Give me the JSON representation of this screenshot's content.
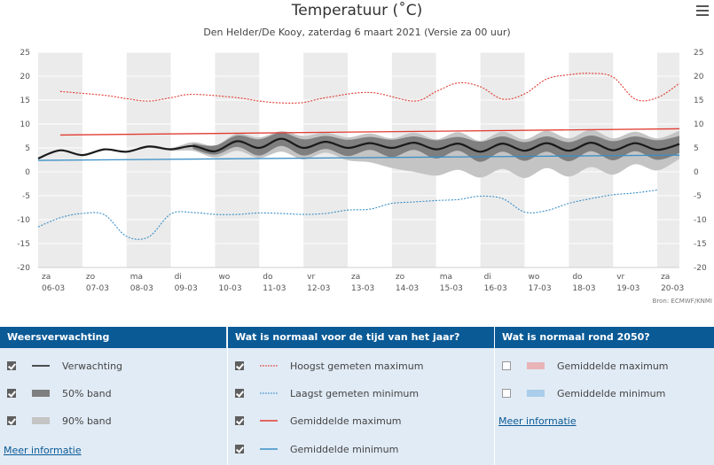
{
  "header": {
    "title": "Temperatuur (˚C)",
    "subtitle": "Den Helder/De Kooy, zaterdag 6 maart 2021 (Versie za 00 uur)",
    "source": "Bron: ECMWF/KNMI"
  },
  "chart_data": {
    "type": "line",
    "ylim": [
      -20,
      25
    ],
    "yticks": [
      25,
      20,
      15,
      10,
      5,
      0,
      -5,
      -10,
      -15,
      -20
    ],
    "xlim": [
      0,
      14.5
    ],
    "categories": [
      {
        "day": "za",
        "date": "06-03"
      },
      {
        "day": "zo",
        "date": "07-03"
      },
      {
        "day": "ma",
        "date": "08-03"
      },
      {
        "day": "di",
        "date": "09-03"
      },
      {
        "day": "wo",
        "date": "10-03"
      },
      {
        "day": "do",
        "date": "11-03"
      },
      {
        "day": "vr",
        "date": "12-03"
      },
      {
        "day": "za",
        "date": "13-03"
      },
      {
        "day": "zo",
        "date": "14-03"
      },
      {
        "day": "ma",
        "date": "15-03"
      },
      {
        "day": "di",
        "date": "16-03"
      },
      {
        "day": "wo",
        "date": "17-03"
      },
      {
        "day": "do",
        "date": "18-03"
      },
      {
        "day": "vr",
        "date": "19-03"
      },
      {
        "day": "za",
        "date": "20-03"
      }
    ],
    "colors": {
      "forecast": "#1a1a1a",
      "band50": "#7f7f7f",
      "band90": "#c4c4c4",
      "highest_max": "#e03c31",
      "lowest_min": "#3a8fc7",
      "avg_max": "#e03c31",
      "avg_min": "#3a8fc7",
      "stripe": "#ebebeb"
    },
    "series": [
      {
        "key": "highest_max",
        "x": [
          0.5,
          1.5,
          2.0,
          2.5,
          3.0,
          3.5,
          4.5,
          5.0,
          5.5,
          6.0,
          6.5,
          7.5,
          8.5,
          9.0,
          9.5,
          10.0,
          10.5,
          11.0,
          11.5,
          12.0,
          12.5,
          13.0,
          13.5,
          14.0,
          14.5
        ],
        "y": [
          16.8,
          16.0,
          15.3,
          14.8,
          15.5,
          16.2,
          15.5,
          14.8,
          14.4,
          14.5,
          15.5,
          16.6,
          14.8,
          16.8,
          18.6,
          17.8,
          15.2,
          16.3,
          19.4,
          20.3,
          20.6,
          19.8,
          15.2,
          15.5,
          18.5
        ]
      },
      {
        "key": "lowest_min",
        "x": [
          0.0,
          0.5,
          1.0,
          1.5,
          2.0,
          2.5,
          3.0,
          3.5,
          4.0,
          4.5,
          5.0,
          5.5,
          6.0,
          6.5,
          7.0,
          7.5,
          8.0,
          8.5,
          9.0,
          9.5,
          10.0,
          10.5,
          11.0,
          11.5,
          12.0,
          12.5,
          13.0,
          13.5,
          14.0
        ],
        "y": [
          -11.5,
          -9.6,
          -8.7,
          -9.0,
          -13.5,
          -13.6,
          -8.8,
          -8.5,
          -8.9,
          -8.9,
          -8.6,
          -8.7,
          -8.9,
          -8.7,
          -8.0,
          -7.8,
          -6.6,
          -6.3,
          -6.0,
          -5.8,
          -5.1,
          -5.6,
          -8.4,
          -8.1,
          -6.6,
          -5.6,
          -4.8,
          -4.4,
          -3.8
        ]
      },
      {
        "key": "avg_max",
        "x": [
          0.5,
          14.5
        ],
        "y": [
          7.7,
          9.0
        ]
      },
      {
        "key": "avg_min",
        "x": [
          0.0,
          14.5
        ],
        "y": [
          2.4,
          3.5
        ]
      },
      {
        "key": "forecast",
        "x": [
          0.0,
          0.5,
          1.0,
          1.5,
          2.0,
          2.5,
          3.0,
          3.5,
          4.0,
          4.5,
          5.0,
          5.5,
          6.0,
          6.5,
          7.0,
          7.5,
          8.0,
          8.5,
          9.0,
          9.5,
          10.0,
          10.5,
          11.0,
          11.5,
          12.0,
          12.5,
          13.0,
          13.5,
          14.0,
          14.5
        ],
        "y": [
          2.8,
          4.5,
          3.5,
          4.7,
          4.2,
          5.3,
          4.7,
          5.4,
          4.3,
          6.4,
          5.0,
          6.9,
          5.0,
          6.3,
          5.0,
          6.0,
          5.0,
          6.1,
          4.7,
          5.9,
          4.2,
          5.9,
          4.4,
          6.0,
          4.4,
          6.1,
          4.5,
          6.0,
          4.6,
          5.8
        ]
      },
      {
        "key": "band50",
        "x": [
          3.5,
          4.0,
          4.5,
          5.0,
          5.5,
          6.0,
          6.5,
          7.0,
          7.5,
          8.0,
          8.5,
          9.0,
          9.5,
          10.0,
          10.5,
          11.0,
          11.5,
          12.0,
          12.5,
          13.0,
          13.5,
          14.0,
          14.5
        ],
        "upper": [
          5.9,
          5.5,
          7.6,
          6.8,
          8.2,
          6.8,
          7.5,
          6.7,
          7.3,
          6.7,
          7.4,
          6.6,
          7.3,
          6.3,
          7.4,
          6.2,
          7.4,
          6.2,
          7.6,
          6.4,
          7.4,
          6.6,
          7.5
        ],
        "lower": [
          4.8,
          3.6,
          5.2,
          3.4,
          5.4,
          3.4,
          4.8,
          3.3,
          4.6,
          3.1,
          4.6,
          2.8,
          4.4,
          2.1,
          4.2,
          2.3,
          4.2,
          2.2,
          4.3,
          2.4,
          4.3,
          2.5,
          3.9
        ]
      },
      {
        "key": "band90",
        "x": [
          0.0,
          0.5,
          1.0,
          1.5,
          2.0,
          2.5,
          3.0,
          3.5,
          4.0,
          4.5,
          5.0,
          5.5,
          6.0,
          6.5,
          7.0,
          7.5,
          8.0,
          8.5,
          9.0,
          9.5,
          10.0,
          10.5,
          11.0,
          11.5,
          12.0,
          12.5,
          13.0,
          13.5,
          14.0,
          14.5
        ],
        "upper": [
          2.8,
          4.5,
          3.5,
          4.7,
          4.2,
          5.5,
          5.0,
          6.2,
          5.5,
          8.0,
          7.2,
          8.5,
          7.5,
          8.2,
          7.2,
          8.0,
          7.0,
          8.2,
          6.8,
          8.3,
          6.5,
          8.4,
          6.8,
          8.6,
          7.0,
          8.8,
          7.0,
          8.4,
          7.0,
          8.6
        ],
        "lower": [
          2.8,
          4.5,
          3.5,
          4.7,
          4.2,
          5.0,
          4.4,
          4.4,
          3.0,
          4.4,
          2.9,
          4.2,
          2.6,
          4.0,
          2.4,
          2.0,
          0.8,
          0.0,
          -0.8,
          0.4,
          -1.2,
          0.6,
          -1.3,
          0.8,
          -1.0,
          1.0,
          -0.6,
          1.6,
          0.3,
          2.7
        ]
      }
    ]
  },
  "legend": {
    "columns": [
      {
        "heading": "Weersverwachting",
        "items": [
          {
            "label": "Verwachting",
            "checked": true,
            "kind": "line",
            "color": "#1a1a1a"
          },
          {
            "label": "50% band",
            "checked": true,
            "kind": "box",
            "color": "#7f7f7f"
          },
          {
            "label": "90% band",
            "checked": true,
            "kind": "box",
            "color": "#c4c4c4"
          }
        ],
        "more": "Meer informatie"
      },
      {
        "heading": "Wat is normaal voor de tijd van het jaar?",
        "items": [
          {
            "label": "Hoogst gemeten maximum",
            "checked": true,
            "kind": "dotted",
            "color": "#e03c31"
          },
          {
            "label": "Laagst gemeten minimum",
            "checked": true,
            "kind": "dotted",
            "color": "#3a8fc7"
          },
          {
            "label": "Gemiddelde maximum",
            "checked": true,
            "kind": "line",
            "color": "#e03c31"
          },
          {
            "label": "Gemiddelde minimum",
            "checked": true,
            "kind": "line",
            "color": "#3a8fc7"
          }
        ]
      },
      {
        "heading": "Wat is normaal rond 2050?",
        "items": [
          {
            "label": "Gemiddelde maximum",
            "checked": false,
            "kind": "box",
            "color": "#e8b4b8"
          },
          {
            "label": "Gemiddelde minimum",
            "checked": false,
            "kind": "box",
            "color": "#a9cdea"
          }
        ],
        "more": "Meer informatie"
      }
    ]
  }
}
